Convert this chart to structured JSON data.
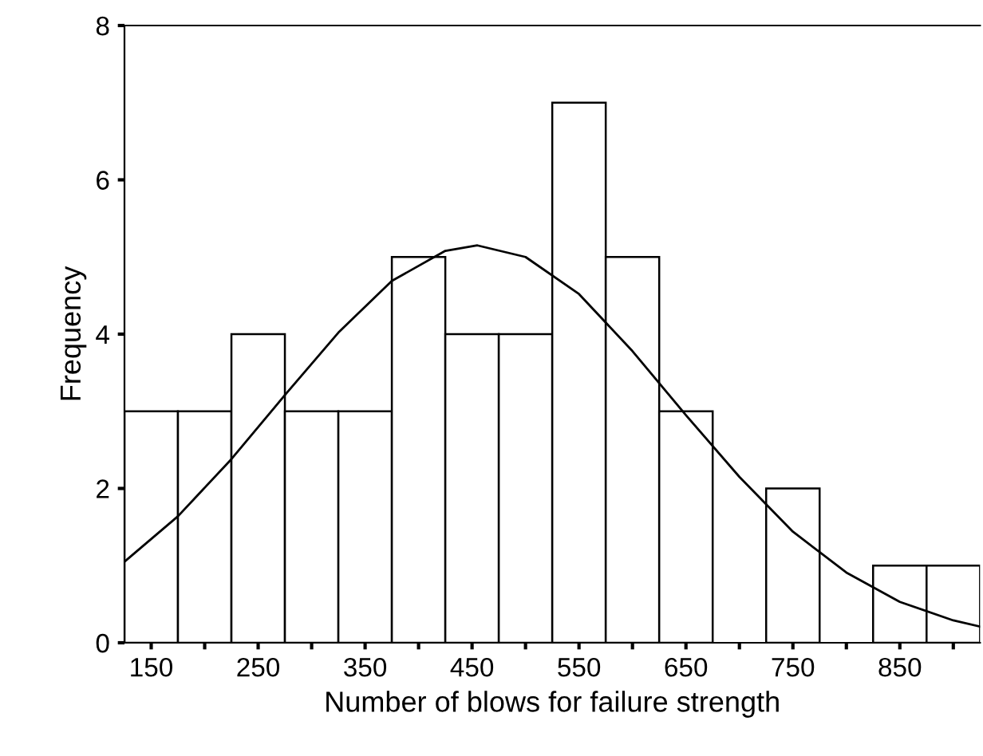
{
  "chart_data": {
    "type": "histogram",
    "xlabel": "Number of blows for failure strength",
    "ylabel": "Frequency",
    "bins": [
      125,
      175,
      225,
      275,
      325,
      375,
      425,
      475,
      525,
      575,
      625,
      675,
      725,
      775,
      825,
      875,
      925
    ],
    "series": [
      {
        "color": "#ffffff",
        "values": [
          3,
          3,
          4,
          3,
          3,
          5,
          4,
          4,
          7,
          5,
          3,
          0,
          2,
          0,
          1,
          1
        ]
      },
      {
        "type": "line",
        "color": "#000000",
        "x": [
          125,
          175,
          225,
          275,
          325,
          375,
          425,
          455,
          500,
          550,
          600,
          650,
          700,
          750,
          800,
          850,
          900,
          925
        ],
        "values": [
          1.05,
          1.64,
          2.38,
          3.21,
          4.02,
          4.69,
          5.08,
          5.15,
          5.0,
          4.52,
          3.78,
          2.95,
          2.15,
          1.44,
          0.91,
          0.53,
          0.29,
          0.21
        ]
      }
    ],
    "xlim": [
      125,
      925
    ],
    "ylim": [
      0,
      8
    ],
    "xticks": [
      150,
      {
        "value": 200,
        "label": null
      },
      250,
      {
        "value": 300,
        "label": null
      },
      350,
      {
        "value": 400,
        "label": null
      },
      450,
      {
        "value": 500,
        "label": null
      },
      550,
      {
        "value": 600,
        "label": null
      },
      650,
      {
        "value": 700,
        "label": null
      },
      750,
      {
        "value": 800,
        "label": null
      },
      850,
      {
        "value": 900,
        "label": null
      }
    ],
    "yticks": [
      0,
      2,
      4,
      6,
      8
    ],
    "grid": false,
    "legend": false,
    "marker": "none",
    "line_style": "solid"
  }
}
